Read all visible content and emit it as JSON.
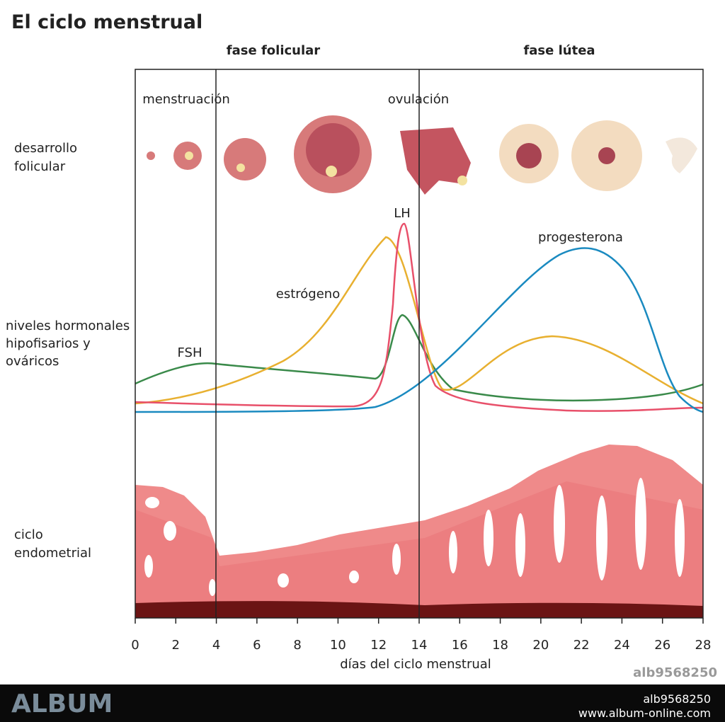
{
  "header": {
    "title": "El ciclo menstrual"
  },
  "phases": [
    "fase folicular",
    "fase lútea"
  ],
  "row_labels": [
    [
      "desarrollo",
      "folicular"
    ],
    [
      "niveles hormonales",
      "hipofisarios y",
      "ováricos"
    ],
    [
      "ciclo",
      "endometrial"
    ]
  ],
  "annotations": {
    "menstruation": "menstruación",
    "ovulation": "ovulación",
    "lh": "LH",
    "estrogen": "estrógeno",
    "fsh": "FSH",
    "progesterone": "progesterona"
  },
  "axis": {
    "ticks": [
      0,
      2,
      4,
      6,
      8,
      10,
      12,
      14,
      16,
      18,
      20,
      22,
      24,
      26,
      28
    ],
    "label": "días del ciclo menstrual"
  },
  "image_id": "alb9568250",
  "footer": {
    "brand": "ALBUM",
    "id": "alb9568250",
    "url": "www.album-online.com"
  }
}
